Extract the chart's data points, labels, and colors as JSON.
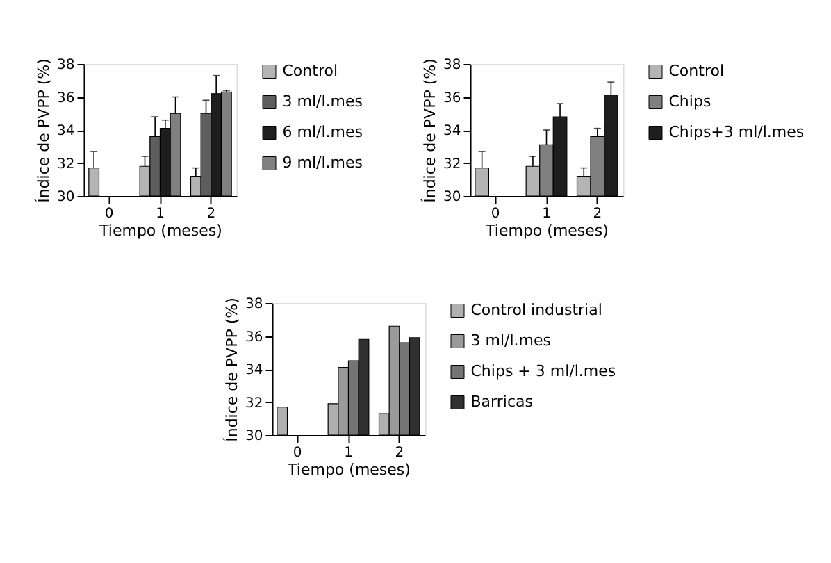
{
  "chart_data": [
    {
      "type": "bar",
      "categories": [
        "0",
        "1",
        "2"
      ],
      "xlabel": "Tiempo (meses)",
      "ylabel": "Índice de PVPP (%)",
      "ylim": [
        30,
        38
      ],
      "yticks": [
        30,
        32,
        34,
        36,
        38
      ],
      "grid": false,
      "legend": "right",
      "series": [
        {
          "name": "Control",
          "color": "#b4b4b4",
          "values": [
            31.7,
            31.8,
            31.2
          ],
          "errors": [
            [
              31.7,
              32.7
            ],
            [
              31.8,
              32.4
            ],
            [
              31.2,
              31.7
            ]
          ]
        },
        {
          "name": "3 ml/l.mes",
          "color": "#5e5e5e",
          "values": [
            null,
            33.6,
            35.0
          ],
          "errors": [
            null,
            [
              33.6,
              34.8
            ],
            [
              35.0,
              35.8
            ]
          ]
        },
        {
          "name": "6 ml/l.mes",
          "color": "#1e1e1e",
          "values": [
            null,
            34.1,
            36.2
          ],
          "errors": [
            null,
            [
              34.1,
              34.6
            ],
            [
              36.2,
              37.3
            ]
          ]
        },
        {
          "name": "9 ml/l.mes",
          "color": "#808080",
          "values": [
            null,
            35.0,
            36.3
          ],
          "errors": [
            null,
            [
              35.0,
              36.0
            ],
            [
              36.3,
              36.4
            ]
          ]
        }
      ]
    },
    {
      "type": "bar",
      "categories": [
        "0",
        "1",
        "2"
      ],
      "xlabel": "Tiempo (meses)",
      "ylabel": "Índice de PVPP (%)",
      "ylim": [
        30,
        38
      ],
      "yticks": [
        30,
        32,
        34,
        36,
        38
      ],
      "grid": false,
      "legend": "right",
      "series": [
        {
          "name": "Control",
          "color": "#b4b4b4",
          "values": [
            31.7,
            31.8,
            31.2
          ],
          "errors": [
            [
              31.7,
              32.7
            ],
            [
              31.8,
              32.4
            ],
            [
              31.2,
              31.7
            ]
          ]
        },
        {
          "name": "Chips",
          "color": "#808080",
          "values": [
            null,
            33.1,
            33.6
          ],
          "errors": [
            null,
            [
              33.1,
              34.0
            ],
            [
              33.6,
              34.1
            ]
          ]
        },
        {
          "name": "Chips+3 ml/l.mes",
          "color": "#1e1e1e",
          "values": [
            null,
            34.8,
            36.1
          ],
          "errors": [
            null,
            [
              34.8,
              35.6
            ],
            [
              36.1,
              36.9
            ]
          ]
        }
      ]
    },
    {
      "type": "bar",
      "categories": [
        "0",
        "1",
        "2"
      ],
      "xlabel": "Tiempo (meses)",
      "ylabel": "Índice de PVPP (%)",
      "ylim": [
        30,
        38
      ],
      "yticks": [
        30,
        32,
        34,
        36,
        38
      ],
      "grid": false,
      "legend": "right",
      "series": [
        {
          "name": "Control industrial",
          "color": "#b0b0b0",
          "values": [
            31.7,
            31.9,
            31.3
          ]
        },
        {
          "name": "3 ml/l.mes",
          "color": "#9a9a9a",
          "values": [
            null,
            34.1,
            36.6
          ]
        },
        {
          "name": "Chips + 3 ml/l.mes",
          "color": "#747474",
          "values": [
            null,
            34.5,
            35.6
          ]
        },
        {
          "name": "Barricas",
          "color": "#303030",
          "values": [
            null,
            35.8,
            35.9
          ]
        }
      ]
    }
  ]
}
